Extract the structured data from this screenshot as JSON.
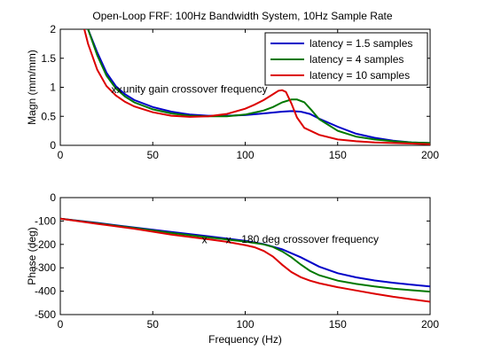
{
  "chart_data": [
    {
      "type": "line",
      "title": "Open-Loop FRF: 100Hz Bandwidth System, 10Hz Sample Rate",
      "xlabel": "",
      "ylabel": "Magn (mm/mm)",
      "xlim": [
        0,
        200
      ],
      "ylim": [
        0,
        2
      ],
      "xticks": [
        "0",
        "50",
        "100",
        "150",
        "200"
      ],
      "yticks": [
        "0",
        "0.5",
        "1",
        "1.5",
        "2"
      ],
      "grid": false,
      "legend_position": "top-right",
      "series": [
        {
          "name": "latency = 1.5 samples",
          "color": "#0000c8",
          "x": [
            15,
            20,
            25,
            30,
            35,
            40,
            50,
            60,
            70,
            80,
            90,
            100,
            110,
            120,
            125,
            130,
            135,
            140,
            150,
            160,
            170,
            180,
            190,
            200
          ],
          "y": [
            2.0,
            1.6,
            1.25,
            1.02,
            0.88,
            0.78,
            0.66,
            0.58,
            0.53,
            0.51,
            0.51,
            0.52,
            0.55,
            0.58,
            0.59,
            0.58,
            0.54,
            0.46,
            0.32,
            0.2,
            0.13,
            0.08,
            0.05,
            0.04
          ]
        },
        {
          "name": "latency = 4 samples",
          "color": "#007800",
          "x": [
            15,
            20,
            25,
            30,
            35,
            40,
            50,
            60,
            70,
            80,
            90,
            100,
            110,
            115,
            120,
            125,
            128,
            132,
            136,
            140,
            150,
            160,
            170,
            180,
            190,
            200
          ],
          "y": [
            2.0,
            1.55,
            1.2,
            0.98,
            0.84,
            0.74,
            0.62,
            0.55,
            0.51,
            0.5,
            0.5,
            0.53,
            0.6,
            0.66,
            0.74,
            0.79,
            0.79,
            0.74,
            0.6,
            0.45,
            0.25,
            0.15,
            0.1,
            0.07,
            0.05,
            0.04
          ]
        },
        {
          "name": "latency = 10 samples",
          "color": "#dc0000",
          "x": [
            13,
            15,
            20,
            25,
            30,
            35,
            40,
            50,
            60,
            70,
            80,
            90,
            100,
            105,
            110,
            115,
            118,
            120,
            122,
            125,
            128,
            132,
            140,
            150,
            160,
            170,
            180,
            190,
            200
          ],
          "y": [
            2.0,
            1.75,
            1.3,
            1.02,
            0.86,
            0.75,
            0.67,
            0.57,
            0.51,
            0.49,
            0.5,
            0.54,
            0.63,
            0.7,
            0.78,
            0.88,
            0.94,
            0.95,
            0.92,
            0.72,
            0.48,
            0.3,
            0.18,
            0.1,
            0.07,
            0.05,
            0.04,
            0.03,
            0.02
          ]
        }
      ],
      "annotations": [
        {
          "text": "unity gain crossover frequency",
          "x": 33,
          "y": 0.97,
          "marker_x": [
            29,
            32
          ],
          "marker_y": [
            0.96,
            0.96
          ]
        }
      ]
    },
    {
      "type": "line",
      "title": "",
      "xlabel": "Frequency (Hz)",
      "ylabel": "Phase (deg)",
      "xlim": [
        0,
        200
      ],
      "ylim": [
        -500,
        0
      ],
      "xticks": [
        "0",
        "50",
        "100",
        "150",
        "200"
      ],
      "yticks": [
        "0",
        "-100",
        "-200",
        "-300",
        "-400",
        "-500"
      ],
      "grid": false,
      "series": [
        {
          "name": "latency = 1.5 samples",
          "color": "#0000c8",
          "x": [
            0,
            20,
            40,
            60,
            80,
            100,
            110,
            120,
            130,
            140,
            150,
            160,
            170,
            180,
            190,
            200
          ],
          "y": [
            -90,
            -108,
            -128,
            -147,
            -165,
            -185,
            -199,
            -221,
            -255,
            -295,
            -323,
            -341,
            -354,
            -364,
            -372,
            -380
          ]
        },
        {
          "name": "latency = 4 samples",
          "color": "#007800",
          "x": [
            0,
            20,
            40,
            60,
            80,
            100,
            110,
            115,
            120,
            125,
            130,
            135,
            140,
            150,
            160,
            170,
            180,
            190,
            200
          ],
          "y": [
            -90,
            -110,
            -130,
            -151,
            -170,
            -188,
            -200,
            -211,
            -230,
            -255,
            -286,
            -313,
            -332,
            -355,
            -369,
            -380,
            -389,
            -396,
            -402
          ]
        },
        {
          "name": "latency = 10 samples",
          "color": "#dc0000",
          "x": [
            0,
            20,
            40,
            60,
            80,
            90,
            100,
            105,
            110,
            115,
            120,
            125,
            130,
            135,
            140,
            150,
            160,
            170,
            180,
            190,
            200
          ],
          "y": [
            -90,
            -112,
            -133,
            -158,
            -178,
            -189,
            -203,
            -212,
            -228,
            -252,
            -287,
            -318,
            -340,
            -355,
            -366,
            -383,
            -397,
            -411,
            -424,
            -435,
            -445
          ]
        }
      ],
      "annotations": [
        {
          "text": "180 deg crossover frequency",
          "x": 97,
          "y": -178,
          "marker_x": [
            78,
            91
          ],
          "marker_y": [
            -180,
            -180
          ]
        }
      ]
    }
  ]
}
